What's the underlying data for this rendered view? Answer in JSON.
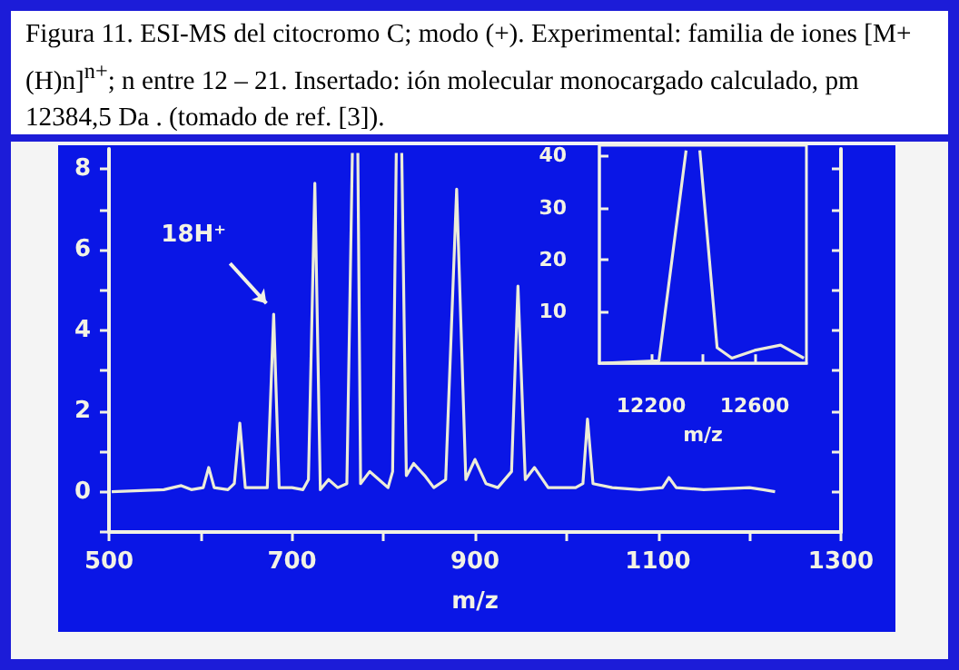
{
  "chart_data": [
    {
      "type": "line",
      "title": "Figura 11. ESI-MS del citocromo C; modo (+). Experimental: familia de iones [M+(H)n]$^{n+}$; n entre 12 – 21. Insertado: ión molecular monocargado calculado, pm 12384,5 Da . (tomado de ref. [3]).",
      "xlabel": "m/z",
      "color": "#ececd8",
      "x": [
        503,
        560,
        579,
        590,
        603,
        609,
        615,
        630,
        637,
        643,
        649,
        660,
        673,
        680,
        686,
        700,
        712,
        718,
        725,
        731,
        740,
        750,
        760,
        766,
        769,
        772,
        775,
        785,
        795,
        805,
        810,
        814,
        817,
        820,
        825,
        833,
        845,
        855,
        868,
        880,
        890,
        900,
        912,
        925,
        940,
        947,
        955,
        965,
        980,
        1010,
        1018,
        1023,
        1029,
        1050,
        1080,
        1105,
        1112,
        1120,
        1150,
        1200,
        1215,
        1228
      ],
      "values": [
        0,
        0.05,
        0.15,
        0.05,
        0.1,
        0.6,
        0.1,
        0.05,
        0.2,
        1.7,
        0.1,
        0.1,
        0.1,
        4.4,
        0.1,
        0.1,
        0.05,
        0.3,
        7.65,
        0.05,
        0.3,
        0.1,
        0.2,
        8.4,
        null,
        8.4,
        0.2,
        0.5,
        0.3,
        0.1,
        0.5,
        8.4,
        null,
        8.4,
        0.4,
        0.7,
        0.4,
        0.1,
        0.3,
        7.5,
        0.3,
        0.8,
        0.2,
        0.1,
        0.5,
        5.1,
        0.3,
        0.6,
        0.1,
        0.1,
        0.2,
        1.8,
        0.2,
        0.1,
        0.05,
        0.1,
        0.35,
        0.1,
        0.05,
        0.1,
        0.05,
        0
      ],
      "xlim": [
        500,
        1300
      ],
      "xticks": [
        500,
        {
          "value": 600,
          "label": null
        },
        700,
        {
          "value": 800,
          "label": null
        },
        900,
        {
          "value": 1000,
          "label": null
        },
        1100,
        {
          "value": 1200,
          "label": null
        },
        1300
      ],
      "ylim": [
        -1,
        8.5
      ],
      "yticks": [
        {
          "value": -1,
          "label": null
        },
        0,
        {
          "value": 1,
          "label": null
        },
        2,
        {
          "value": 3,
          "label": null
        },
        4,
        {
          "value": 5,
          "label": null
        },
        6,
        {
          "value": 7,
          "label": null
        },
        8
      ],
      "annotations": [
        {
          "text": "18H⁺",
          "x": 680,
          "y": 4.4
        }
      ]
    },
    {
      "type": "line",
      "xlabel": "m/z",
      "color": "#ececd8",
      "x": [
        12010,
        12230,
        12335,
        12362,
        12388,
        12455,
        12512,
        12600,
        12700,
        12790
      ],
      "values": [
        0,
        0.5,
        41,
        null,
        41,
        3,
        1,
        2.5,
        3.5,
        1
      ],
      "xlim": [
        12000,
        12800
      ],
      "xticks": [
        12200,
        {
          "value": 12400,
          "label": null
        },
        12600
      ],
      "ylim": [
        0,
        42
      ],
      "yticks": [
        10,
        20,
        30,
        40
      ]
    }
  ]
}
